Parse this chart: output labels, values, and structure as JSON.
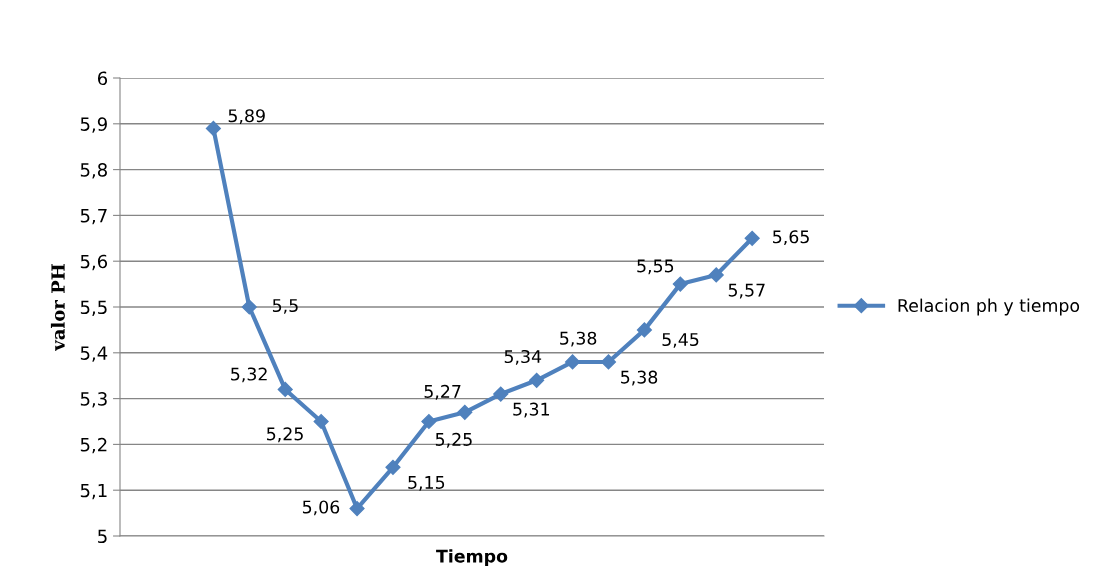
{
  "chart_data": {
    "type": "line",
    "xlabel": "Tiempo",
    "ylabel": "valor PH",
    "categories": [
      null,
      null,
      null,
      null,
      null,
      null,
      null,
      null,
      null,
      null,
      null,
      null,
      null,
      null,
      null,
      null
    ],
    "series": [
      {
        "name": "Relacion ph y tiempo",
        "color": "#4f81bd",
        "values": [
          5.89,
          5.5,
          5.32,
          5.25,
          5.06,
          5.15,
          5.25,
          5.27,
          5.31,
          5.34,
          5.38,
          5.38,
          5.45,
          5.55,
          5.57,
          5.65
        ],
        "value_labels": [
          "5,89",
          "5,5",
          "5,32",
          "5,25",
          "5,06",
          "5,15",
          "5,25",
          "5,27",
          "5,31",
          "5,34",
          "5,38",
          "5,38",
          "5,45",
          "5,55",
          "5,57",
          "5,65"
        ]
      }
    ],
    "ylim": [
      5,
      6
    ],
    "yticks": [
      5,
      {
        "value": 5.1,
        "label": "5,1"
      },
      {
        "value": 5.2,
        "label": "5,2"
      },
      {
        "value": 5.3,
        "label": "5,3"
      },
      {
        "value": 5.4,
        "label": "5,4"
      },
      {
        "value": 5.5,
        "label": "5,5"
      },
      {
        "value": 5.6,
        "label": "5,6"
      },
      {
        "value": 5.7,
        "label": "5,7"
      },
      {
        "value": 5.8,
        "label": "5,8"
      },
      {
        "value": 5.9,
        "label": "5,9"
      },
      6
    ],
    "grid": "y",
    "legend": "right",
    "marker": "diamond",
    "line_style": "solid"
  }
}
